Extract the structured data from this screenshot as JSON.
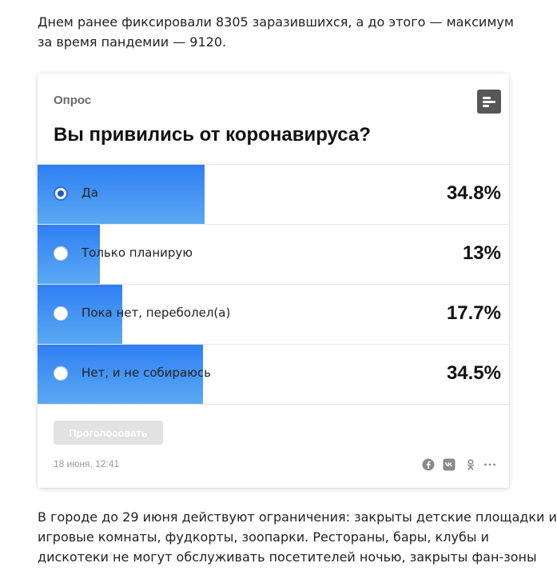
{
  "article": {
    "top_text": "Днем ранее фиксировали 8305 заразившихся, а до этого — максимум за время пандемии — 9120.",
    "bottom_lines": [
      "В городе до 29 июня действуют ограничения: закрыты детские площадки и",
      "игровые комнаты, фудкорты, зоопарки. Рестораны, бары, клубы и",
      "дискотеки не могут обслуживать посетителей ночью, закрыты фан-зоны"
    ]
  },
  "poll": {
    "label": "Опрос",
    "icon": "poll-results-icon",
    "question": "Вы привились от коронавируса?",
    "options": [
      {
        "label": "Да",
        "percent_text": "34.8%",
        "percent": 34.8,
        "selected": true
      },
      {
        "label": "Только планирую",
        "percent_text": "13%",
        "percent": 13,
        "selected": false
      },
      {
        "label": "Пока нет, переболел(а)",
        "percent_text": "17.7%",
        "percent": 17.7,
        "selected": false
      },
      {
        "label": "Нет, и не собираюсь",
        "percent_text": "34.5%",
        "percent": 34.5,
        "selected": false
      }
    ],
    "vote_label": "Проголосовать",
    "date": "18 июня, 12:41",
    "share_icons": [
      "facebook-icon",
      "vk-icon",
      "odnoklassniki-icon",
      "more-icon"
    ]
  },
  "colors": {
    "bar_top": "#2f7ff5",
    "bar_bottom": "#5aa9f2",
    "icon_bg": "#575757",
    "button_disabled": "#e2e2e2"
  }
}
